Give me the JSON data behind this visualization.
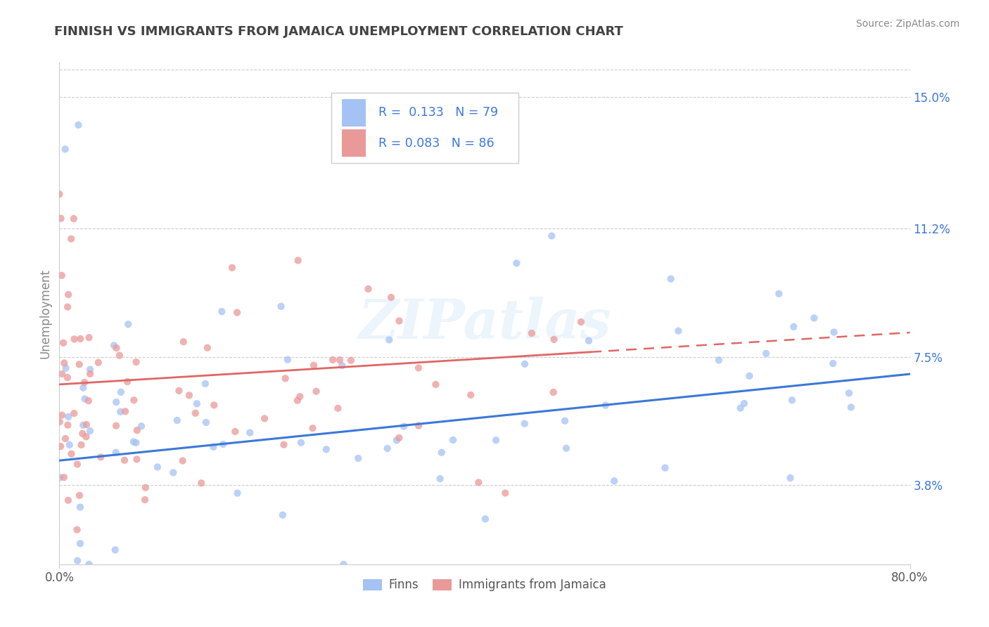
{
  "title": "FINNISH VS IMMIGRANTS FROM JAMAICA UNEMPLOYMENT CORRELATION CHART",
  "source": "Source: ZipAtlas.com",
  "ylabel": "Unemployment",
  "right_yticks": [
    3.8,
    7.5,
    11.2,
    15.0
  ],
  "right_ytick_labels": [
    "3.8%",
    "7.5%",
    "11.2%",
    "15.0%"
  ],
  "xmin": 0.0,
  "xmax": 80.0,
  "ymin": 1.5,
  "ymax": 16.0,
  "legend_label1": "Finns",
  "legend_label2": "Immigrants from Jamaica",
  "R1": 0.133,
  "N1": 79,
  "R2": 0.083,
  "N2": 86,
  "blue_color": "#a4c2f4",
  "pink_color": "#ea9999",
  "blue_line_color": "#3c78d8",
  "pink_line_color": "#e06666",
  "dot_size": 55,
  "alpha": 0.75,
  "background_color": "#ffffff",
  "grid_color": "#cccccc",
  "title_color": "#434343",
  "watermark": "ZIPatlas",
  "axis_color": "#888888",
  "tick_color": "#555555",
  "source_color": "#888888"
}
